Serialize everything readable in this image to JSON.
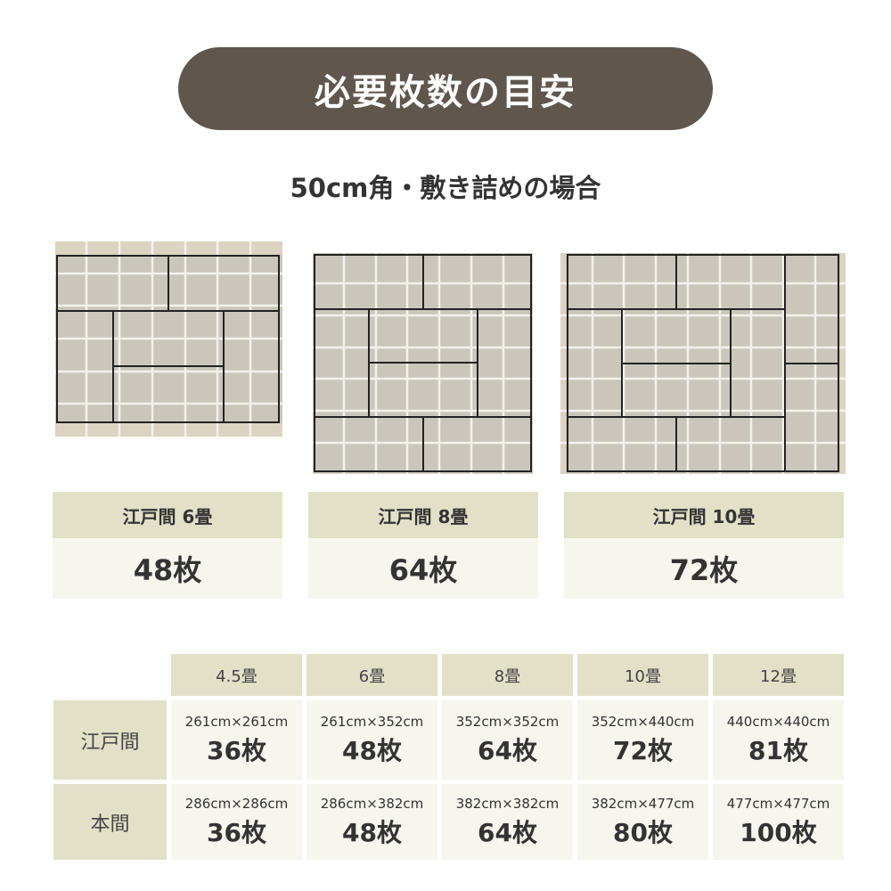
{
  "title": "必要枚数の目安",
  "subtitle": "50cm角・敷き詰めの場合",
  "colors": {
    "pill": "#5f574e",
    "header_bg": "#e3e0c8",
    "cell_bg": "#f6f5ee",
    "tile": "#cac6bb",
    "tile_gap": "#ece9e2",
    "background_floor": "#dcd3c0",
    "tatami_line": "#222222"
  },
  "cards": [
    {
      "label": "江戸間 6畳",
      "count": "48枚"
    },
    {
      "label": "江戸間 8畳",
      "count": "64枚"
    },
    {
      "label": "江戸間 10畳",
      "count": "72枚"
    }
  ],
  "table": {
    "columns": [
      "4.5畳",
      "6畳",
      "8畳",
      "10畳",
      "12畳"
    ],
    "rows": [
      {
        "label": "江戸間",
        "cells": [
          {
            "size": "261cm×261cm",
            "count": "36枚"
          },
          {
            "size": "261cm×352cm",
            "count": "48枚"
          },
          {
            "size": "352cm×352cm",
            "count": "64枚"
          },
          {
            "size": "352cm×440cm",
            "count": "72枚"
          },
          {
            "size": "440cm×440cm",
            "count": "81枚"
          }
        ]
      },
      {
        "label": "本間",
        "cells": [
          {
            "size": "286cm×286cm",
            "count": "36枚"
          },
          {
            "size": "286cm×382cm",
            "count": "48枚"
          },
          {
            "size": "382cm×382cm",
            "count": "64枚"
          },
          {
            "size": "382cm×477cm",
            "count": "80枚"
          },
          {
            "size": "477cm×477cm",
            "count": "100枚"
          }
        ]
      }
    ]
  }
}
